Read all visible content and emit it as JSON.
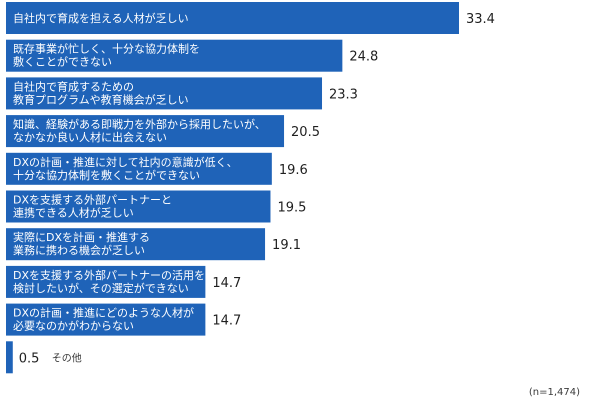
{
  "chart_data": {
    "type": "bar",
    "orientation": "horizontal",
    "categories": [
      "自社内で育成を担える人材が乏しい",
      "既存事業が忙しく、十分な協力体制を\n敷くことができない",
      "自社内で育成するための\n教育プログラムや教育機会が乏しい",
      "知識、経験がある即戦力を外部から採用したいが、\nなかなか良い人材に出会えない",
      "DXの計画・推進に対して社内の意識が低く、\n十分な協力体制を敷くことができない",
      "DXを支援する外部パートナーと\n連携できる人材が乏しい",
      "実際にDXを計画・推進する\n業務に携わる機会が乏しい",
      "DXを支援する外部パートナーの活用を\n検討したいが、その選定ができない",
      "DXの計画・推進にどのような人材が\n必要なのかがわからない",
      "その他"
    ],
    "value_labels": [
      "33.4",
      "24.8",
      "23.3",
      "20.5",
      "19.6",
      "19.5",
      "19.1",
      "14.7",
      "14.7",
      "0.5"
    ],
    "values": [
      33.4,
      24.8,
      23.3,
      20.5,
      19.6,
      19.5,
      19.1,
      14.7,
      14.7,
      0.5
    ],
    "xlim": [
      0,
      40
    ],
    "bar_color": "#1f63b8",
    "sample_note": "(n=1,474)",
    "grid": false
  }
}
